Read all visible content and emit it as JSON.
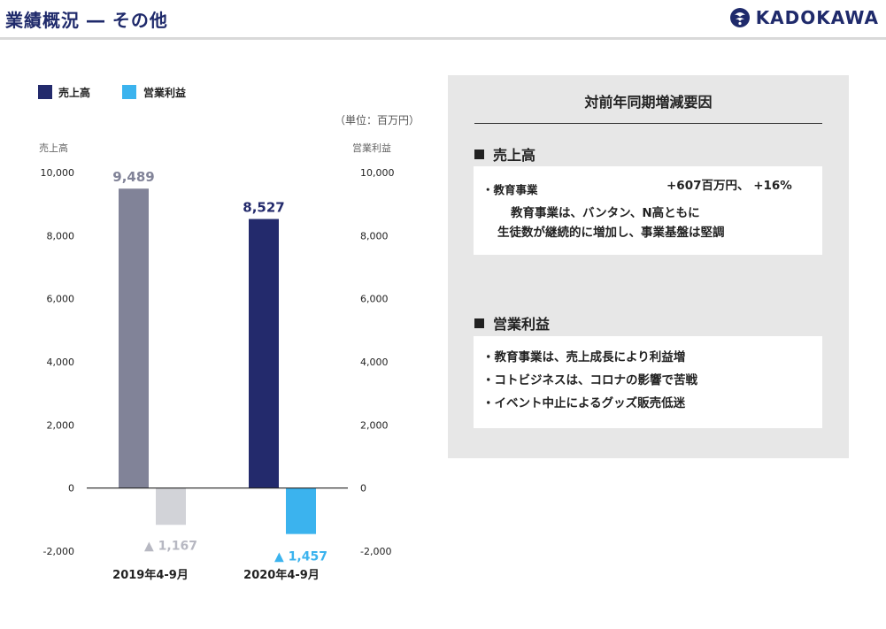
{
  "header": {
    "title": "業績概況 ― その他",
    "logo_text": "KADOKAWA"
  },
  "colors": {
    "sales_2019": "#818398",
    "op_2019": "#d2d3d8",
    "sales_2020": "#232a6c",
    "op_2020": "#3bb3ee",
    "title": "#1f2a6b"
  },
  "chart_data": {
    "type": "bar",
    "categories": [
      "2019年4-9月",
      "2020年4-9月"
    ],
    "series": [
      {
        "name": "売上高",
        "values": [
          9489,
          8527
        ],
        "value_labels": [
          "9,489",
          "8,527"
        ]
      },
      {
        "name": "営業利益",
        "values": [
          -1167,
          -1457
        ],
        "value_labels": [
          "▲ 1,167",
          "▲ 1,457"
        ]
      }
    ],
    "unit": "（単位：百万円）",
    "ylabel_left": "売上高",
    "ylabel_right": "営業利益",
    "ylim": [
      -2000,
      10000
    ],
    "ticks": [
      10000,
      8000,
      6000,
      4000,
      2000,
      0,
      -2000
    ],
    "tick_labels": [
      "10,000",
      "8,000",
      "6,000",
      "4,000",
      "2,000",
      "0",
      "-2,000"
    ],
    "legend_position": "top-left",
    "grid": false
  },
  "panel": {
    "title": "対前年同期増減要因",
    "sales": {
      "heading": "売上高",
      "item_label": "・教育事業",
      "item_value": "+607百万円、 +16%",
      "detail_1": "教育事業は、バンタン、N高ともに",
      "detail_2": "生徒数が継続的に増加し、事業基盤は堅調"
    },
    "profit": {
      "heading": "営業利益",
      "items": [
        "・教育事業は、売上成長により利益増",
        "・コトビジネスは、コロナの影響で苦戦",
        "・イベント中止によるグッズ販売低迷"
      ]
    }
  }
}
